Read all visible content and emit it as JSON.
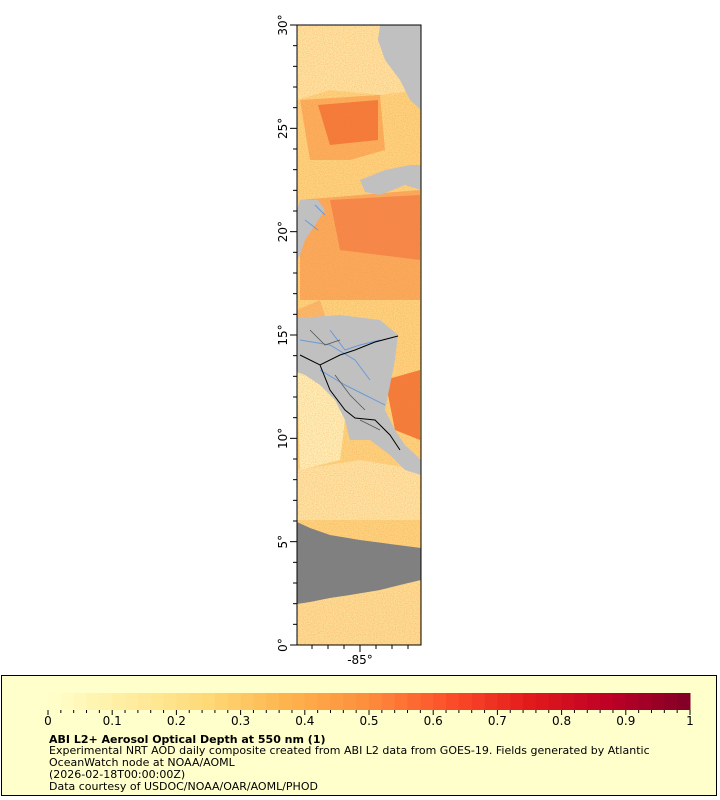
{
  "map": {
    "y_axis": {
      "ticks": [
        {
          "value": 0,
          "label": "0°"
        },
        {
          "value": 5,
          "label": "5°"
        },
        {
          "value": 10,
          "label": "10°"
        },
        {
          "value": 15,
          "label": "15°"
        },
        {
          "value": 20,
          "label": "20°"
        },
        {
          "value": 25,
          "label": "25°"
        },
        {
          "value": 30,
          "label": "30°"
        }
      ],
      "range": [
        0,
        30
      ]
    },
    "x_axis": {
      "ticks": [
        {
          "value": -85,
          "label": "-85°"
        }
      ]
    },
    "colors": {
      "land": "#c0c0c0",
      "no_data": "#808080",
      "rivers": "#6a9ad8",
      "borders": "#000000",
      "states": "#555555"
    }
  },
  "colorbar": {
    "min": 0,
    "max": 1,
    "tick_labels": [
      "0",
      "0.1",
      "0.2",
      "0.3",
      "0.4",
      "0.5",
      "0.6",
      "0.7",
      "0.8",
      "0.9",
      "1"
    ],
    "colors": [
      "#ffffcc",
      "#ffeda0",
      "#fed976",
      "#feb24c",
      "#fd8d3c",
      "#fc4e2a",
      "#e31a1c",
      "#bd0026",
      "#800026"
    ]
  },
  "legend": {
    "title": "ABI L2+ Aerosol Optical Depth at 550 nm (1)",
    "lines": [
      "Experimental NRT AOD daily composite created from ABI L2 data from GOES-19. Fields generated by Atlantic",
      "OceanWatch node at NOAA/AOML",
      "(2026-02-18T00:00:00Z)",
      "Data courtesy of USDOC/NOAA/OAR/AOML/PHOD"
    ]
  }
}
